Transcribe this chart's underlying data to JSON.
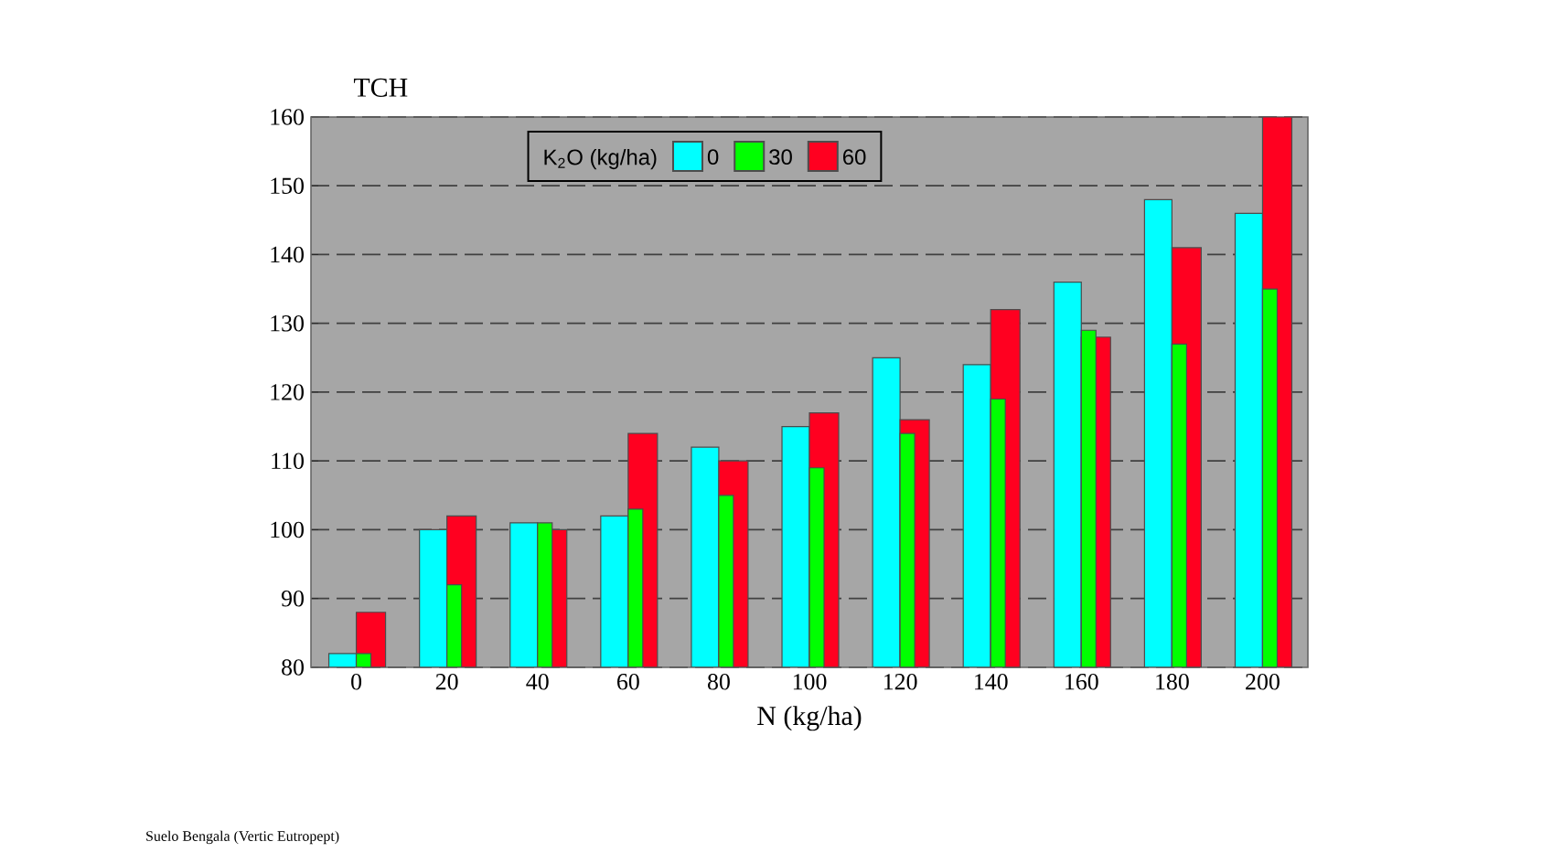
{
  "chart_data": {
    "type": "bar",
    "xlabel": "N (kg/ha)",
    "ylabel": "TCH",
    "legend_title": "K$_{2}$O (kg/ha)",
    "categories": [
      "0",
      "20",
      "40",
      "60",
      "80",
      "100",
      "120",
      "140",
      "160",
      "180",
      "200"
    ],
    "series": [
      {
        "name": "0",
        "color": "#00ffff",
        "values": [
          82,
          100,
          101,
          102,
          112,
          115,
          125,
          124,
          136,
          148,
          146
        ]
      },
      {
        "name": "30",
        "color": "#00ff00",
        "values": [
          82,
          92,
          101,
          103,
          105,
          109,
          114,
          119,
          129,
          127,
          135
        ]
      },
      {
        "name": "60",
        "color": "#ff0020",
        "values": [
          88,
          102,
          100,
          114,
          110,
          117,
          116,
          132,
          128,
          141,
          160
        ]
      }
    ],
    "ylim": [
      80,
      160
    ],
    "yticks": [
      80,
      90,
      100,
      110,
      120,
      130,
      140,
      150,
      160
    ],
    "grid": "y",
    "legend": "top",
    "annotations": [
      "Suelo Bengala (Vertic Eutropept)"
    ]
  }
}
